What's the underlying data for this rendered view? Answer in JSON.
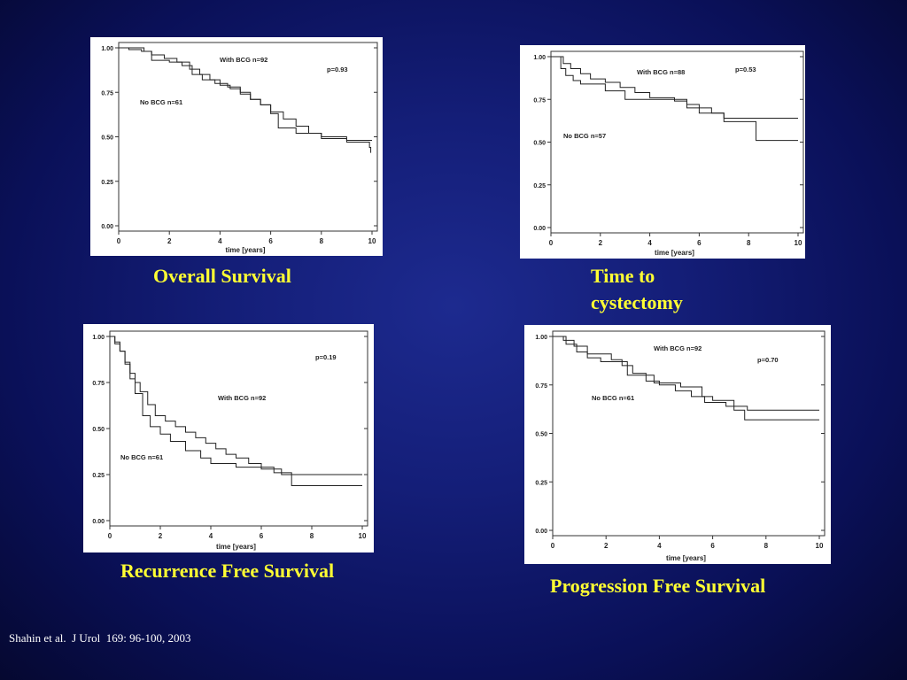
{
  "slide": {
    "captions": [
      "Overall Survival",
      "Time to cystectomy",
      "Recurrence Free Survival",
      "Progression Free Survival"
    ],
    "citation": "Shahin et al.  J Urol  169: 96-100, 2003"
  },
  "chart_data": [
    {
      "type": "line",
      "title": "Overall Survival",
      "xlabel": "time [years]",
      "xlim": [
        0,
        10
      ],
      "ylim": [
        0,
        1
      ],
      "xticks": [
        "0",
        "2",
        "4",
        "6",
        "8",
        "10"
      ],
      "yticks": [
        "0.00",
        "0.25",
        "0.50",
        "0.75",
        "1.00"
      ],
      "grid": false,
      "annotations": {
        "p_value": "p=0.93"
      },
      "series": [
        {
          "name": "With BCG n=92",
          "step": true,
          "x": [
            0,
            0.4,
            0.9,
            1.3,
            1.8,
            2.3,
            2.8,
            3.2,
            3.6,
            4.0,
            4.4,
            4.8,
            5.2,
            5.6,
            6.0,
            6.5,
            7.0,
            7.5,
            8.0,
            9.0,
            10.0
          ],
          "y": [
            1.0,
            0.99,
            0.98,
            0.96,
            0.94,
            0.92,
            0.88,
            0.85,
            0.82,
            0.79,
            0.77,
            0.74,
            0.71,
            0.68,
            0.64,
            0.6,
            0.56,
            0.52,
            0.5,
            0.48,
            0.48
          ]
        },
        {
          "name": "No BCG n=61",
          "step": true,
          "x": [
            0,
            1.0,
            1.3,
            2.0,
            2.5,
            2.9,
            3.3,
            3.8,
            4.3,
            4.8,
            5.2,
            5.6,
            6.0,
            6.3,
            7.0,
            8.0,
            9.0,
            9.9,
            9.95
          ],
          "y": [
            1.0,
            0.98,
            0.93,
            0.92,
            0.9,
            0.85,
            0.82,
            0.8,
            0.78,
            0.75,
            0.71,
            0.68,
            0.63,
            0.55,
            0.52,
            0.49,
            0.47,
            0.44,
            0.41
          ]
        }
      ]
    },
    {
      "type": "line",
      "title": "Time to cystectomy",
      "xlabel": "time [years]",
      "xlim": [
        0,
        10
      ],
      "ylim": [
        0,
        1
      ],
      "xticks": [
        "0",
        "2",
        "4",
        "6",
        "8",
        "10"
      ],
      "yticks": [
        "0.00",
        "0.25",
        "0.50",
        "0.75",
        "1.00"
      ],
      "grid": false,
      "annotations": {
        "p_value": "p=0.53"
      },
      "series": [
        {
          "name": "With BCG n=88",
          "step": true,
          "x": [
            0,
            0.5,
            0.8,
            1.2,
            1.6,
            2.2,
            2.8,
            3.4,
            4.0,
            5.0,
            5.5,
            6.5,
            7.0,
            10.0
          ],
          "y": [
            1.0,
            0.96,
            0.93,
            0.9,
            0.87,
            0.85,
            0.82,
            0.79,
            0.76,
            0.74,
            0.7,
            0.67,
            0.64,
            0.64
          ]
        },
        {
          "name": "No BCG n=57",
          "step": true,
          "x": [
            0,
            0.4,
            0.6,
            0.9,
            1.2,
            2.2,
            3.0,
            5.5,
            6.0,
            7.0,
            8.3,
            10.0
          ],
          "y": [
            1.0,
            0.93,
            0.89,
            0.86,
            0.84,
            0.8,
            0.75,
            0.72,
            0.67,
            0.62,
            0.51,
            0.51
          ]
        }
      ]
    },
    {
      "type": "line",
      "title": "Recurrence Free Survival",
      "xlabel": "time [years]",
      "xlim": [
        0,
        10
      ],
      "ylim": [
        0,
        1
      ],
      "xticks": [
        "0",
        "2",
        "4",
        "6",
        "8",
        "10"
      ],
      "yticks": [
        "0.00",
        "0.25",
        "0.50",
        "0.75",
        "1.00"
      ],
      "grid": false,
      "annotations": {
        "p_value": "p=0.19"
      },
      "series": [
        {
          "name": "With BCG n=92",
          "step": true,
          "x": [
            0,
            0.2,
            0.4,
            0.6,
            0.8,
            1.0,
            1.2,
            1.5,
            1.8,
            2.2,
            2.6,
            3.0,
            3.4,
            3.8,
            4.2,
            4.6,
            5.0,
            5.5,
            6.0,
            6.8,
            10.0
          ],
          "y": [
            1.0,
            0.96,
            0.92,
            0.86,
            0.8,
            0.75,
            0.7,
            0.63,
            0.57,
            0.54,
            0.51,
            0.48,
            0.45,
            0.42,
            0.39,
            0.36,
            0.34,
            0.31,
            0.28,
            0.25,
            0.25
          ]
        },
        {
          "name": "No BCG n=61",
          "step": true,
          "x": [
            0,
            0.2,
            0.4,
            0.6,
            0.8,
            1.0,
            1.3,
            1.6,
            2.0,
            2.4,
            3.0,
            3.6,
            4.0,
            5.0,
            6.5,
            7.2,
            10.0
          ],
          "y": [
            1.0,
            0.97,
            0.92,
            0.85,
            0.77,
            0.69,
            0.57,
            0.51,
            0.47,
            0.43,
            0.38,
            0.34,
            0.31,
            0.29,
            0.26,
            0.19,
            0.19
          ]
        }
      ]
    },
    {
      "type": "line",
      "title": "Progression Free Survival",
      "xlabel": "time [years]",
      "xlim": [
        0,
        10
      ],
      "ylim": [
        0,
        1
      ],
      "xticks": [
        "0",
        "2",
        "4",
        "6",
        "8",
        "10"
      ],
      "yticks": [
        "0.00",
        "0.25",
        "0.50",
        "0.75",
        "1.00"
      ],
      "grid": false,
      "annotations": {
        "p_value": "p=0.70"
      },
      "series": [
        {
          "name": "With BCG n=92",
          "step": true,
          "x": [
            0,
            0.4,
            0.8,
            1.3,
            2.2,
            2.6,
            3.0,
            3.5,
            4.0,
            4.6,
            5.2,
            5.7,
            6.5,
            7.3,
            10.0
          ],
          "y": [
            1.0,
            0.98,
            0.95,
            0.91,
            0.88,
            0.85,
            0.81,
            0.77,
            0.75,
            0.72,
            0.69,
            0.66,
            0.64,
            0.62,
            0.62
          ]
        },
        {
          "name": "No BCG n=61",
          "step": true,
          "x": [
            0,
            0.5,
            0.9,
            1.3,
            1.8,
            2.8,
            3.8,
            4.8,
            5.6,
            6.0,
            6.8,
            7.2,
            10.0
          ],
          "y": [
            1.0,
            0.96,
            0.92,
            0.89,
            0.87,
            0.8,
            0.76,
            0.74,
            0.69,
            0.67,
            0.62,
            0.57,
            0.57
          ]
        }
      ]
    }
  ]
}
